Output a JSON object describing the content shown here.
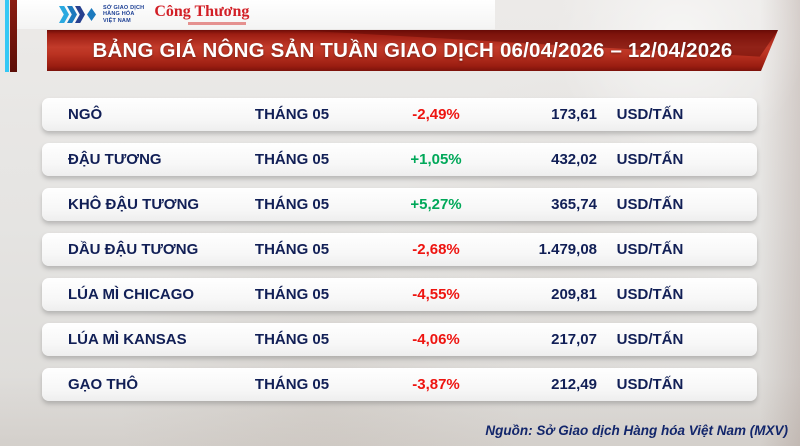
{
  "header": {
    "mxv_lines": [
      "SỞ GIAO DỊCH",
      "HÀNG HÓA",
      "VIỆT NAM"
    ],
    "congthuong": "Công Thương"
  },
  "chart_data": {
    "type": "table",
    "title": "BẢNG GIÁ NÔNG SẢN TUẦN GIAO DỊCH 06/04/2026 – 12/04/2026",
    "columns_shown": false,
    "rows": [
      {
        "name": "NGÔ",
        "month": "THÁNG 05",
        "change": "-2,49%",
        "change_value": -2.49,
        "direction": "down",
        "price": "173,61",
        "price_value": 173.61,
        "unit": "USD/TẤN"
      },
      {
        "name": "ĐẬU TƯƠNG",
        "month": "THÁNG 05",
        "change": "+1,05%",
        "change_value": 1.05,
        "direction": "up",
        "price": "432,02",
        "price_value": 432.02,
        "unit": "USD/TẤN"
      },
      {
        "name": "KHÔ ĐẬU TƯƠNG",
        "month": "THÁNG 05",
        "change": "+5,27%",
        "change_value": 5.27,
        "direction": "up",
        "price": "365,74",
        "price_value": 365.74,
        "unit": "USD/TẤN"
      },
      {
        "name": "DẦU ĐẬU TƯƠNG",
        "month": "THÁNG 05",
        "change": "-2,68%",
        "change_value": -2.68,
        "direction": "down",
        "price": "1.479,08",
        "price_value": 1479.08,
        "unit": "USD/TẤN"
      },
      {
        "name": "LÚA MÌ CHICAGO",
        "month": "THÁNG 05",
        "change": "-4,55%",
        "change_value": -4.55,
        "direction": "down",
        "price": "209,81",
        "price_value": 209.81,
        "unit": "USD/TẤN"
      },
      {
        "name": "LÚA MÌ KANSAS",
        "month": "THÁNG 05",
        "change": "-4,06%",
        "change_value": -4.06,
        "direction": "down",
        "price": "217,07",
        "price_value": 217.07,
        "unit": "USD/TẤN"
      },
      {
        "name": "GẠO THÔ",
        "month": "THÁNG 05",
        "change": "-3,87%",
        "change_value": -3.87,
        "direction": "down",
        "price": "212,49",
        "price_value": 212.49,
        "unit": "USD/TẤN"
      }
    ],
    "source": "Nguồn: Sở Giao dịch Hàng hóa Việt Nam (MXV)"
  },
  "colors": {
    "up": "#00a859",
    "down": "#ee1410",
    "text_navy": "#111f56",
    "banner_red": "#c23b2a",
    "stripe_cyan": "#35c8f5",
    "stripe_maroon": "#8a1d12"
  }
}
